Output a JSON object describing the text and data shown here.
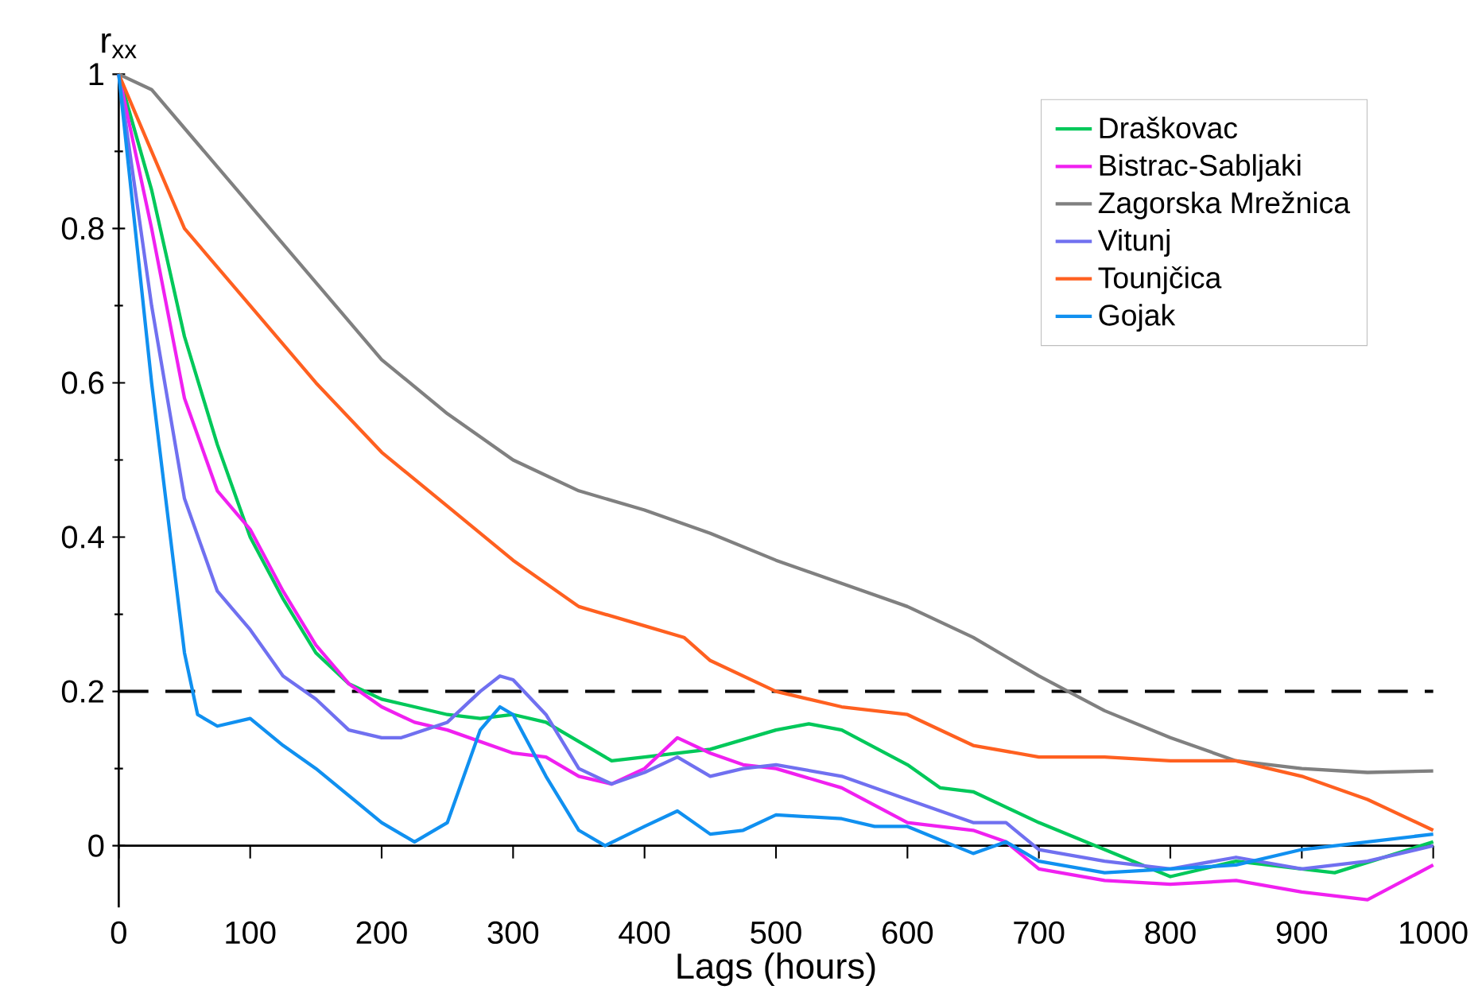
{
  "chart_data": {
    "type": "line",
    "xlabel": "Lags (hours)",
    "ylabel": "r$_{xx}$",
    "xlim": [
      0,
      1000
    ],
    "ylim": [
      -0.08,
      1
    ],
    "xticks": [
      0,
      100,
      200,
      300,
      400,
      500,
      600,
      700,
      800,
      900,
      1000
    ],
    "yticks": [
      0,
      0.2,
      0.4,
      0.6,
      0.8,
      1
    ],
    "grid": false,
    "legend": "top right",
    "line_style": "solid",
    "marker": "none",
    "ref_lines": [
      {
        "axis": "y",
        "value": 0.2,
        "color": "#000000",
        "line_style": "dashed"
      }
    ],
    "series": [
      {
        "name": "Draškovac",
        "color": "#00c85a",
        "x": [
          0,
          25,
          50,
          75,
          100,
          125,
          150,
          175,
          200,
          250,
          275,
          300,
          325,
          350,
          375,
          400,
          450,
          500,
          525,
          550,
          600,
          625,
          650,
          700,
          750,
          800,
          850,
          900,
          925,
          1000
        ],
        "values": [
          1,
          0.85,
          0.66,
          0.52,
          0.4,
          0.32,
          0.25,
          0.21,
          0.19,
          0.17,
          0.165,
          0.17,
          0.16,
          0.135,
          0.11,
          0.115,
          0.125,
          0.15,
          0.158,
          0.15,
          0.105,
          0.075,
          0.07,
          0.03,
          -0.005,
          -0.04,
          -0.02,
          -0.03,
          -0.035,
          0.005
        ]
      },
      {
        "name": "Bistrac-Sabljaki",
        "color": "#f020f0",
        "x": [
          0,
          25,
          50,
          75,
          100,
          125,
          150,
          175,
          200,
          225,
          250,
          300,
          325,
          350,
          375,
          400,
          425,
          450,
          475,
          500,
          550,
          600,
          650,
          675,
          700,
          750,
          800,
          850,
          900,
          950,
          1000
        ],
        "values": [
          1,
          0.8,
          0.58,
          0.46,
          0.41,
          0.33,
          0.26,
          0.21,
          0.18,
          0.16,
          0.15,
          0.12,
          0.115,
          0.09,
          0.08,
          0.1,
          0.14,
          0.12,
          0.105,
          0.1,
          0.075,
          0.03,
          0.02,
          0.005,
          -0.03,
          -0.045,
          -0.05,
          -0.045,
          -0.06,
          -0.07,
          -0.025
        ]
      },
      {
        "name": "Zagorska Mrežnica",
        "color": "#808080",
        "x": [
          0,
          25,
          50,
          100,
          150,
          200,
          250,
          300,
          350,
          400,
          450,
          500,
          550,
          600,
          650,
          700,
          750,
          800,
          850,
          900,
          950,
          1000
        ],
        "values": [
          1,
          0.98,
          0.93,
          0.83,
          0.73,
          0.63,
          0.56,
          0.5,
          0.46,
          0.435,
          0.405,
          0.37,
          0.34,
          0.31,
          0.27,
          0.22,
          0.175,
          0.14,
          0.11,
          0.1,
          0.095,
          0.097
        ]
      },
      {
        "name": "Vitunj",
        "color": "#7070f0",
        "x": [
          0,
          25,
          50,
          75,
          100,
          125,
          150,
          175,
          200,
          215,
          250,
          275,
          290,
          300,
          325,
          350,
          375,
          400,
          425,
          450,
          475,
          500,
          550,
          600,
          650,
          675,
          700,
          750,
          800,
          850,
          900,
          950,
          1000
        ],
        "values": [
          1,
          0.7,
          0.45,
          0.33,
          0.28,
          0.22,
          0.19,
          0.15,
          0.14,
          0.14,
          0.16,
          0.2,
          0.22,
          0.215,
          0.17,
          0.1,
          0.08,
          0.095,
          0.115,
          0.09,
          0.1,
          0.105,
          0.09,
          0.06,
          0.03,
          0.03,
          -0.005,
          -0.02,
          -0.03,
          -0.015,
          -0.03,
          -0.02,
          0
        ]
      },
      {
        "name": "Tounjčica",
        "color": "#ff6020",
        "x": [
          0,
          25,
          50,
          100,
          150,
          200,
          250,
          300,
          350,
          400,
          430,
          450,
          500,
          550,
          600,
          650,
          700,
          750,
          800,
          850,
          900,
          950,
          1000
        ],
        "values": [
          1,
          0.9,
          0.8,
          0.7,
          0.6,
          0.51,
          0.44,
          0.37,
          0.31,
          0.285,
          0.27,
          0.24,
          0.2,
          0.18,
          0.17,
          0.13,
          0.115,
          0.115,
          0.11,
          0.11,
          0.09,
          0.06,
          0.02
        ]
      },
      {
        "name": "Gojak",
        "color": "#1090f0",
        "x": [
          0,
          25,
          50,
          60,
          75,
          100,
          125,
          150,
          175,
          200,
          225,
          250,
          275,
          290,
          300,
          325,
          350,
          370,
          400,
          425,
          450,
          475,
          500,
          550,
          575,
          600,
          650,
          675,
          700,
          750,
          800,
          850,
          900,
          950,
          1000
        ],
        "values": [
          1,
          0.6,
          0.25,
          0.17,
          0.155,
          0.165,
          0.13,
          0.1,
          0.065,
          0.03,
          0.005,
          0.03,
          0.15,
          0.18,
          0.17,
          0.09,
          0.02,
          0,
          0.025,
          0.045,
          0.015,
          0.02,
          0.04,
          0.035,
          0.025,
          0.025,
          -0.01,
          0.005,
          -0.02,
          -0.035,
          -0.03,
          -0.025,
          -0.005,
          0.005,
          0.015
        ]
      }
    ]
  }
}
